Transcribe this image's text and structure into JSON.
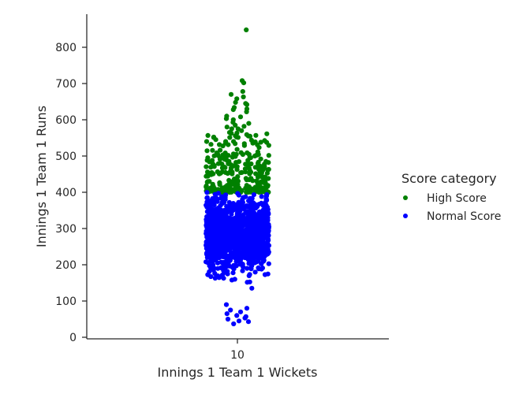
{
  "chart_data": {
    "type": "scatter",
    "xlabel": "Innings 1 Team 1 Wickets",
    "ylabel": "Innings 1 Team 1 Runs",
    "categories": [
      "10"
    ],
    "yticks": [
      0,
      100,
      200,
      300,
      400,
      500,
      600,
      700,
      800
    ],
    "ylim": [
      -5,
      890
    ],
    "grid": false,
    "legend": {
      "title": "Score category",
      "placement": "right",
      "entries": [
        "High Score",
        "Normal Score"
      ]
    },
    "colors": {
      "High Score": "#008000",
      "Normal Score": "#0000ff"
    },
    "series": [
      {
        "name": "High Score",
        "category": "10",
        "summary": {
          "min": 400,
          "max": 848,
          "approx_count": 300
        },
        "outliers": [
          {
            "x": 0.28,
            "y": 848
          },
          {
            "x": 0.15,
            "y": 708
          },
          {
            "x": 0.2,
            "y": 702
          },
          {
            "x": -0.2,
            "y": 670
          },
          {
            "x": 0.17,
            "y": 678
          },
          {
            "x": 0.19,
            "y": 663
          },
          {
            "x": -0.02,
            "y": 658
          },
          {
            "x": -0.06,
            "y": 648
          },
          {
            "x": -0.1,
            "y": 634
          },
          {
            "x": -0.13,
            "y": 628
          },
          {
            "x": 0.3,
            "y": 642
          },
          {
            "x": 0.26,
            "y": 645
          },
          {
            "x": 0.3,
            "y": 630
          },
          {
            "x": 0.29,
            "y": 622
          },
          {
            "x": -0.34,
            "y": 610
          },
          {
            "x": -0.35,
            "y": 603
          },
          {
            "x": -0.13,
            "y": 600
          },
          {
            "x": -0.14,
            "y": 593
          },
          {
            "x": 0.1,
            "y": 608
          },
          {
            "x": 0.36,
            "y": 590
          },
          {
            "x": -0.33,
            "y": 580
          },
          {
            "x": 0.21,
            "y": 582
          },
          {
            "x": -0.07,
            "y": 585
          },
          {
            "x": -0.18,
            "y": 575
          },
          {
            "x": 0.02,
            "y": 575
          },
          {
            "x": -0.25,
            "y": 565
          },
          {
            "x": 0.13,
            "y": 570
          }
        ]
      },
      {
        "name": "Normal Score",
        "category": "10",
        "summary": {
          "min": 37,
          "max": 400,
          "approx_count": 1300
        },
        "outliers": [
          {
            "x": -0.12,
            "y": 37
          },
          {
            "x": 0.35,
            "y": 43
          },
          {
            "x": 0.05,
            "y": 45
          },
          {
            "x": -0.3,
            "y": 50
          },
          {
            "x": 0.24,
            "y": 53
          },
          {
            "x": 0.27,
            "y": 57
          },
          {
            "x": -0.02,
            "y": 60
          },
          {
            "x": -0.33,
            "y": 65
          },
          {
            "x": 0.1,
            "y": 70
          },
          {
            "x": -0.22,
            "y": 75
          },
          {
            "x": 0.3,
            "y": 80
          },
          {
            "x": -0.35,
            "y": 90
          }
        ]
      }
    ]
  }
}
